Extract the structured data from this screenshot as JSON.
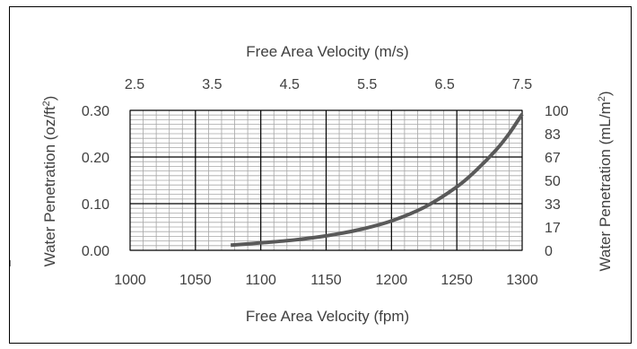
{
  "chart_data": {
    "type": "line",
    "title": "",
    "x_bottom": {
      "label": "Free Area Velocity (fpm)",
      "range": [
        1000,
        1300
      ],
      "ticks": [
        "1000",
        "1050",
        "1100",
        "1150",
        "1200",
        "1250",
        "1300"
      ],
      "major_step": 50,
      "minor_step": 10
    },
    "x_top": {
      "label": "Free Area Velocity (m/s)",
      "range": [
        2.5,
        7.5
      ],
      "ticks": [
        "2.5",
        "3.5",
        "4.5",
        "5.5",
        "6.5",
        "7.5"
      ]
    },
    "y_left": {
      "label_main": "Water Penetration (oz/ft",
      "label_sup": "2",
      "label_end": ")",
      "range": [
        0,
        0.3
      ],
      "ticks": [
        "0.00",
        "0.10",
        "0.20",
        "0.30"
      ],
      "major_step": 0.1,
      "minor_step": 0.01
    },
    "y_right": {
      "label_main": "Water Penetration (mL/m",
      "label_sup": "2",
      "label_end": ")",
      "range": [
        0,
        100
      ],
      "ticks": [
        "0",
        "17",
        "33",
        "50",
        "67",
        "83",
        "100"
      ]
    },
    "grid": true,
    "series": [
      {
        "color": "#595959",
        "x": [
          1077,
          1100,
          1125,
          1150,
          1175,
          1200,
          1225,
          1250,
          1265,
          1280,
          1290,
          1300
        ],
        "y": [
          0.011,
          0.016,
          0.022,
          0.031,
          0.044,
          0.063,
          0.092,
          0.136,
          0.172,
          0.215,
          0.25,
          0.292
        ]
      }
    ]
  }
}
